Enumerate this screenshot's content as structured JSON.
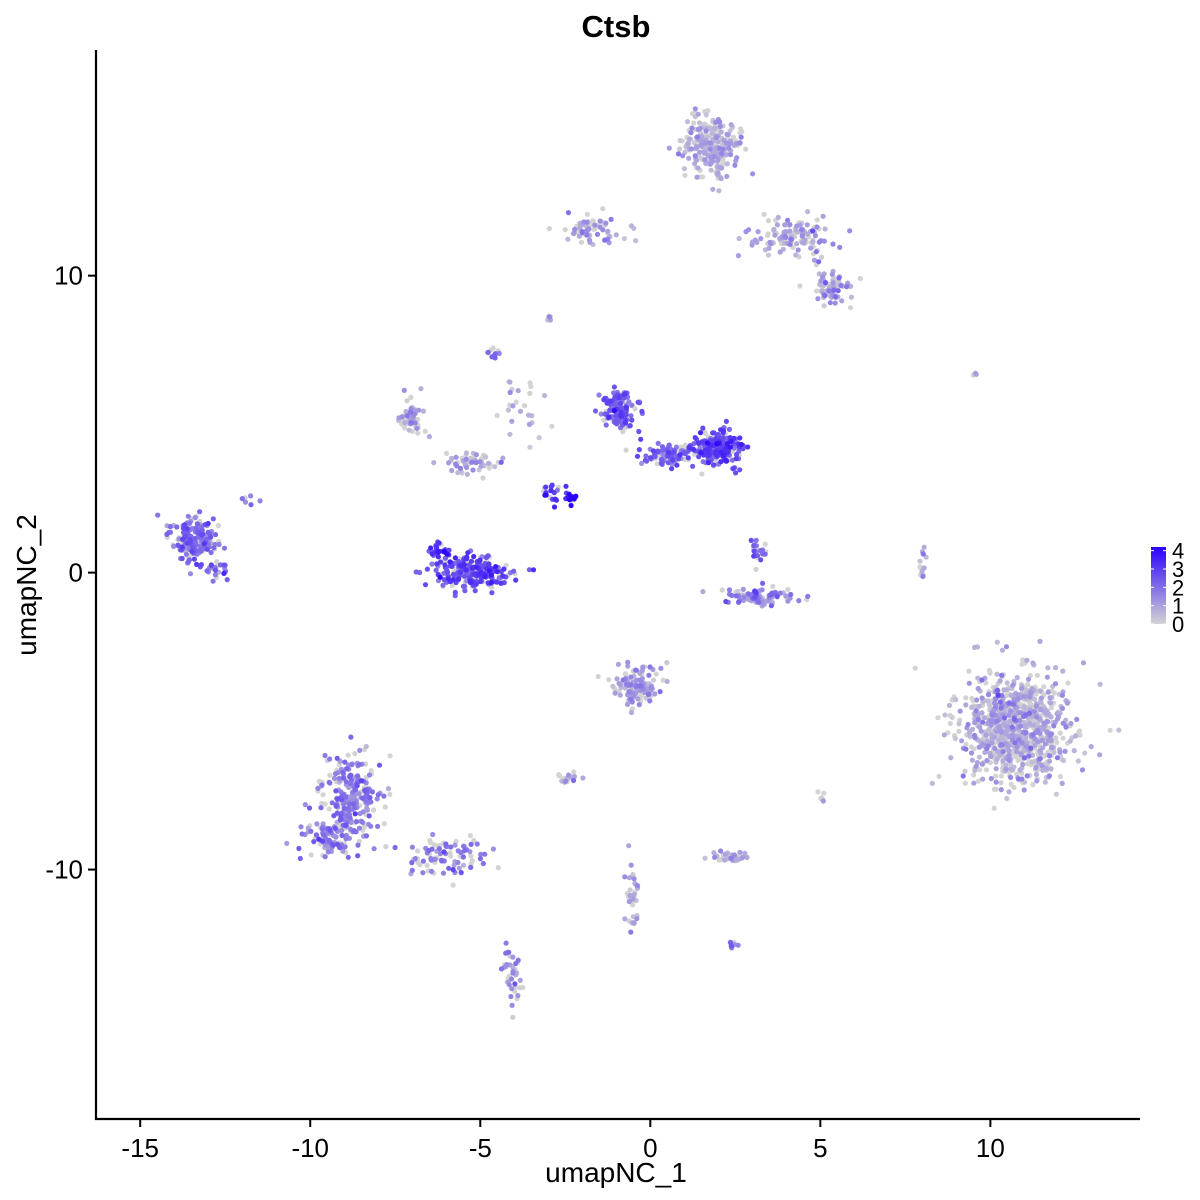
{
  "chart_data": {
    "type": "scatter",
    "title": "Ctsb",
    "xlabel": "umapNC_1",
    "ylabel": "umapNC_2",
    "xlim": [
      -16.3,
      14.4
    ],
    "ylim": [
      -18.4,
      17.6
    ],
    "x_ticks": [
      -15,
      -10,
      -5,
      0,
      5,
      10
    ],
    "x_tick_labels": [
      "-15",
      "-10",
      "-5",
      "0",
      "5",
      "10"
    ],
    "y_ticks": [
      -10,
      0,
      10
    ],
    "y_tick_labels": [
      "-10",
      "0",
      "10"
    ],
    "grid": false,
    "color_scale": {
      "low_color": "#d3d3d3",
      "high_color": "#2b00ff",
      "min": 0,
      "max": 4.2,
      "breaks": [
        0,
        1,
        2,
        3,
        4
      ],
      "break_labels": [
        "0",
        "1",
        "2",
        "3",
        "4"
      ],
      "legend_position": "right"
    },
    "point_color": "#c6b7ee",
    "clusters": [
      {
        "center": [
          10.8,
          -5.2
        ],
        "spread": [
          1.3,
          1.5
        ],
        "n": 900,
        "mean_expr": 0.7
      },
      {
        "center": [
          1.8,
          14.3
        ],
        "spread": [
          0.7,
          0.8
        ],
        "n": 260,
        "mean_expr": 0.7
      },
      {
        "center": [
          4.2,
          11.3
        ],
        "spread": [
          1.0,
          0.6
        ],
        "n": 120,
        "mean_expr": 0.9
      },
      {
        "center": [
          5.3,
          9.6
        ],
        "spread": [
          0.5,
          0.4
        ],
        "n": 70,
        "mean_expr": 0.9
      },
      {
        "center": [
          -1.8,
          11.5
        ],
        "spread": [
          0.9,
          0.4
        ],
        "n": 60,
        "mean_expr": 1.0
      },
      {
        "center": [
          -8.8,
          -7.6
        ],
        "spread": [
          0.8,
          1.2
        ],
        "n": 260,
        "mean_expr": 1.7
      },
      {
        "center": [
          -9.5,
          -9.0
        ],
        "spread": [
          0.6,
          0.5
        ],
        "n": 80,
        "mean_expr": 1.7
      },
      {
        "center": [
          -6.0,
          -9.6
        ],
        "spread": [
          1.0,
          0.5
        ],
        "n": 90,
        "mean_expr": 1.7
      },
      {
        "center": [
          -4.1,
          -13.5
        ],
        "spread": [
          0.2,
          1.0
        ],
        "n": 40,
        "mean_expr": 1.4
      },
      {
        "center": [
          -13.4,
          1.1
        ],
        "spread": [
          0.55,
          0.6
        ],
        "n": 190,
        "mean_expr": 1.9
      },
      {
        "center": [
          -12.7,
          0.1
        ],
        "spread": [
          0.3,
          0.3
        ],
        "n": 25,
        "mean_expr": 1.8
      },
      {
        "center": [
          -5.2,
          0.0
        ],
        "spread": [
          0.9,
          0.45
        ],
        "n": 240,
        "mean_expr": 2.6
      },
      {
        "center": [
          -6.2,
          0.7
        ],
        "spread": [
          0.25,
          0.3
        ],
        "n": 30,
        "mean_expr": 3.0
      },
      {
        "center": [
          -0.9,
          5.5
        ],
        "spread": [
          0.4,
          0.5
        ],
        "n": 130,
        "mean_expr": 2.3
      },
      {
        "center": [
          2.0,
          4.2
        ],
        "spread": [
          0.55,
          0.45
        ],
        "n": 240,
        "mean_expr": 2.6
      },
      {
        "center": [
          0.7,
          4.0
        ],
        "spread": [
          0.9,
          0.35
        ],
        "n": 100,
        "mean_expr": 2.2
      },
      {
        "center": [
          -2.3,
          2.5
        ],
        "spread": [
          0.15,
          0.15
        ],
        "n": 15,
        "mean_expr": 4.0
      },
      {
        "center": [
          -2.8,
          2.7
        ],
        "spread": [
          0.4,
          0.3
        ],
        "n": 20,
        "mean_expr": 3.2
      },
      {
        "center": [
          -7.0,
          5.3
        ],
        "spread": [
          0.35,
          0.6
        ],
        "n": 60,
        "mean_expr": 0.6
      },
      {
        "center": [
          -5.2,
          3.7
        ],
        "spread": [
          0.7,
          0.3
        ],
        "n": 55,
        "mean_expr": 0.8
      },
      {
        "center": [
          3.2,
          -0.8
        ],
        "spread": [
          0.9,
          0.25
        ],
        "n": 90,
        "mean_expr": 1.7
      },
      {
        "center": [
          3.2,
          0.8
        ],
        "spread": [
          0.2,
          0.4
        ],
        "n": 25,
        "mean_expr": 2.0
      },
      {
        "center": [
          -0.4,
          -3.8
        ],
        "spread": [
          0.55,
          0.55
        ],
        "n": 130,
        "mean_expr": 1.0
      },
      {
        "center": [
          2.4,
          -9.6
        ],
        "spread": [
          0.45,
          0.15
        ],
        "n": 40,
        "mean_expr": 0.7
      },
      {
        "center": [
          2.4,
          -12.5
        ],
        "spread": [
          0.15,
          0.1
        ],
        "n": 10,
        "mean_expr": 1.8
      },
      {
        "center": [
          -2.5,
          -6.9
        ],
        "spread": [
          0.25,
          0.15
        ],
        "n": 20,
        "mean_expr": 0.6
      },
      {
        "center": [
          -4.6,
          7.4
        ],
        "spread": [
          0.15,
          0.15
        ],
        "n": 12,
        "mean_expr": 1.8
      },
      {
        "center": [
          -3.0,
          8.6
        ],
        "spread": [
          0.1,
          0.1
        ],
        "n": 5,
        "mean_expr": 0.9
      },
      {
        "center": [
          -0.5,
          -10.8
        ],
        "spread": [
          0.2,
          1.0
        ],
        "n": 35,
        "mean_expr": 0.7
      },
      {
        "center": [
          8.0,
          0.4
        ],
        "spread": [
          0.15,
          0.6
        ],
        "n": 12,
        "mean_expr": 0.3
      },
      {
        "center": [
          9.5,
          6.7
        ],
        "spread": [
          0.1,
          0.05
        ],
        "n": 3,
        "mean_expr": 0.4
      },
      {
        "center": [
          5.0,
          -7.5
        ],
        "spread": [
          0.1,
          0.3
        ],
        "n": 6,
        "mean_expr": 0.6
      },
      {
        "center": [
          -11.7,
          2.5
        ],
        "spread": [
          0.3,
          0.3
        ],
        "n": 6,
        "mean_expr": 1.6
      },
      {
        "center": [
          -3.8,
          5.8
        ],
        "spread": [
          0.6,
          1.2
        ],
        "n": 25,
        "mean_expr": 0.7
      }
    ]
  }
}
